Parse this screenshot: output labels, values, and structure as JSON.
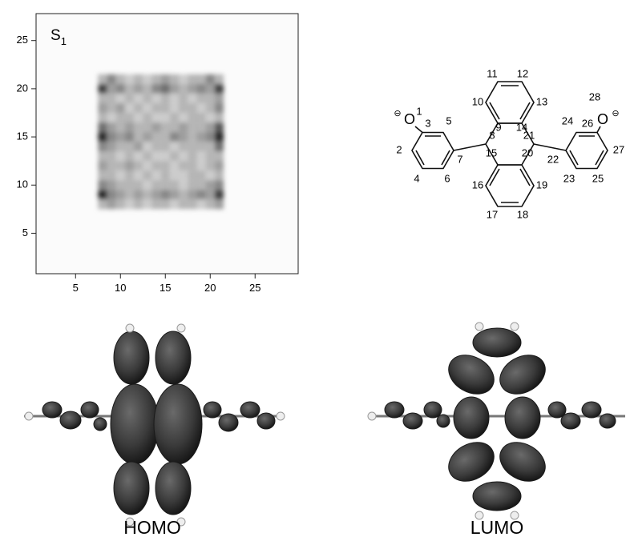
{
  "chart_data": {
    "type": "heatmap",
    "label": "S",
    "label_subscript": "1",
    "x": [
      8,
      9,
      10,
      11,
      12,
      13,
      14,
      15,
      16,
      17,
      18,
      19,
      20,
      21
    ],
    "y": [
      21,
      20,
      19,
      18,
      17,
      16,
      15,
      14,
      13,
      12,
      11,
      10,
      9,
      8
    ],
    "z": [
      [
        0.3,
        0.5,
        0.3,
        0.2,
        0.3,
        0.2,
        0.3,
        0.4,
        0.3,
        0.2,
        0.3,
        0.3,
        0.5,
        0.3
      ],
      [
        0.8,
        0.4,
        0.5,
        0.3,
        0.4,
        0.3,
        0.5,
        0.6,
        0.4,
        0.3,
        0.4,
        0.5,
        0.4,
        0.8
      ],
      [
        0.3,
        0.3,
        0.2,
        0.3,
        0.2,
        0.3,
        0.2,
        0.3,
        0.2,
        0.3,
        0.2,
        0.3,
        0.3,
        0.4
      ],
      [
        0.4,
        0.3,
        0.4,
        0.2,
        0.3,
        0.2,
        0.3,
        0.3,
        0.2,
        0.3,
        0.3,
        0.2,
        0.3,
        0.5
      ],
      [
        0.3,
        0.2,
        0.3,
        0.3,
        0.2,
        0.3,
        0.2,
        0.2,
        0.3,
        0.2,
        0.3,
        0.3,
        0.2,
        0.3
      ],
      [
        0.6,
        0.4,
        0.3,
        0.4,
        0.3,
        0.3,
        0.4,
        0.3,
        0.3,
        0.4,
        0.3,
        0.3,
        0.4,
        0.7
      ],
      [
        0.9,
        0.5,
        0.4,
        0.5,
        0.3,
        0.4,
        0.3,
        0.3,
        0.5,
        0.4,
        0.3,
        0.4,
        0.5,
        0.9
      ],
      [
        0.5,
        0.4,
        0.3,
        0.3,
        0.4,
        0.2,
        0.3,
        0.3,
        0.2,
        0.3,
        0.3,
        0.3,
        0.3,
        0.6
      ],
      [
        0.3,
        0.3,
        0.2,
        0.3,
        0.2,
        0.3,
        0.2,
        0.2,
        0.3,
        0.2,
        0.3,
        0.2,
        0.3,
        0.3
      ],
      [
        0.4,
        0.3,
        0.3,
        0.4,
        0.3,
        0.2,
        0.3,
        0.3,
        0.2,
        0.3,
        0.3,
        0.2,
        0.3,
        0.4
      ],
      [
        0.3,
        0.3,
        0.2,
        0.3,
        0.2,
        0.3,
        0.2,
        0.3,
        0.2,
        0.2,
        0.3,
        0.3,
        0.2,
        0.3
      ],
      [
        0.5,
        0.4,
        0.3,
        0.3,
        0.3,
        0.2,
        0.3,
        0.3,
        0.3,
        0.2,
        0.3,
        0.3,
        0.4,
        0.5
      ],
      [
        0.9,
        0.5,
        0.4,
        0.3,
        0.4,
        0.3,
        0.4,
        0.5,
        0.4,
        0.3,
        0.4,
        0.5,
        0.4,
        0.8
      ],
      [
        0.3,
        0.4,
        0.3,
        0.2,
        0.3,
        0.2,
        0.3,
        0.3,
        0.2,
        0.3,
        0.3,
        0.2,
        0.3,
        0.4
      ]
    ],
    "xlim": [
      0.6,
      29.8
    ],
    "ylim": [
      0.8,
      27.8
    ],
    "xticks": [
      5,
      10,
      15,
      20,
      25
    ],
    "yticks": [
      5,
      10,
      15,
      20,
      25
    ]
  },
  "molecule": {
    "atom_numbers": [
      "1",
      "2",
      "3",
      "4",
      "5",
      "6",
      "7",
      "8",
      "9",
      "10",
      "11",
      "12",
      "13",
      "14",
      "15",
      "16",
      "17",
      "18",
      "19",
      "20",
      "21",
      "22",
      "23",
      "24",
      "25",
      "26",
      "27",
      "28"
    ],
    "oxygen_labels": [
      "O",
      "O"
    ],
    "charge_labels": [
      "⊖",
      "⊖"
    ]
  },
  "orbitals": {
    "homo": "HOMO",
    "lumo": "LUMO"
  }
}
